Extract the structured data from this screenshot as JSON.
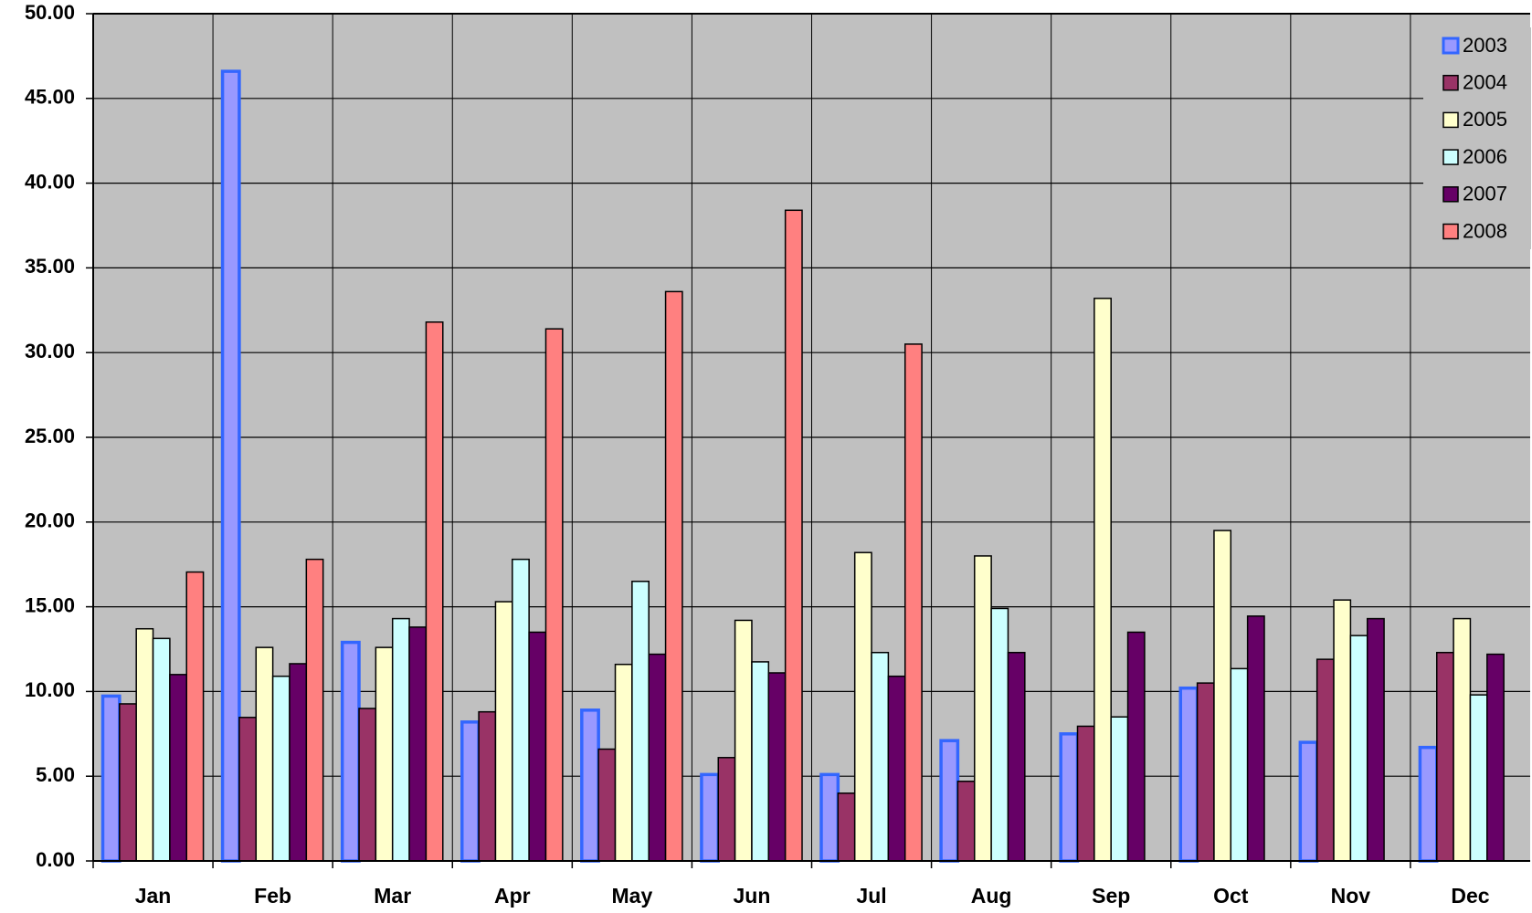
{
  "chart_data": {
    "type": "bar",
    "categories": [
      "Jan",
      "Feb",
      "Mar",
      "Apr",
      "May",
      "Jun",
      "Jul",
      "Aug",
      "Sep",
      "Oct",
      "Nov",
      "Dec"
    ],
    "series": [
      {
        "name": "2003",
        "color": "#9999ff",
        "values": [
          9.73,
          46.6,
          12.9,
          8.2,
          8.9,
          5.1,
          5.1,
          7.1,
          7.5,
          10.2,
          7.0,
          6.7
        ]
      },
      {
        "name": "2004",
        "color": "#993366",
        "values": [
          9.27,
          8.47,
          9.0,
          8.8,
          6.6,
          6.1,
          4.0,
          4.7,
          7.95,
          10.5,
          11.9,
          12.3
        ]
      },
      {
        "name": "2005",
        "color": "#ffffcc",
        "values": [
          13.7,
          12.6,
          12.6,
          15.3,
          11.6,
          14.2,
          18.2,
          18.0,
          33.2,
          19.5,
          15.4,
          14.3
        ]
      },
      {
        "name": "2006",
        "color": "#ccffff",
        "values": [
          13.13,
          10.9,
          14.3,
          17.8,
          16.5,
          11.75,
          12.3,
          14.9,
          8.5,
          11.35,
          13.3,
          9.8
        ]
      },
      {
        "name": "2007",
        "color": "#660066",
        "values": [
          11.0,
          11.64,
          13.8,
          13.5,
          12.2,
          11.1,
          10.9,
          12.3,
          13.5,
          14.45,
          14.3,
          12.2
        ]
      },
      {
        "name": "2008",
        "color": "#ff8080",
        "values": [
          17.05,
          17.8,
          31.8,
          31.4,
          33.6,
          38.4,
          30.5,
          null,
          null,
          null,
          null,
          null
        ]
      }
    ],
    "ylim": [
      0,
      50
    ],
    "yticks": [
      {
        "value": 0,
        "label": "0.00"
      },
      {
        "value": 5,
        "label": "5.00"
      },
      {
        "value": 10,
        "label": "10.00"
      },
      {
        "value": 15,
        "label": "15.00"
      },
      {
        "value": 20,
        "label": "20.00"
      },
      {
        "value": 25,
        "label": "25.00"
      },
      {
        "value": 30,
        "label": "30.00"
      },
      {
        "value": 35,
        "label": "35.00"
      },
      {
        "value": 40,
        "label": "40.00"
      },
      {
        "value": 45,
        "label": "45.00"
      },
      {
        "value": 50,
        "label": "50.00"
      }
    ],
    "grid": true,
    "legend": "top-right"
  }
}
